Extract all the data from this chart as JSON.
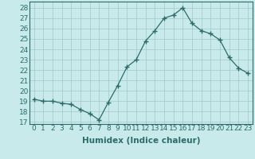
{
  "x": [
    0,
    1,
    2,
    3,
    4,
    5,
    6,
    7,
    8,
    9,
    10,
    11,
    12,
    13,
    14,
    15,
    16,
    17,
    18,
    19,
    20,
    21,
    22,
    23
  ],
  "y": [
    19.2,
    19.0,
    19.0,
    18.8,
    18.7,
    18.2,
    17.8,
    17.2,
    18.9,
    20.5,
    22.3,
    23.0,
    24.8,
    25.8,
    27.0,
    27.3,
    28.0,
    26.5,
    25.8,
    25.5,
    24.9,
    23.2,
    22.2,
    21.7
  ],
  "line_color": "#2d6b6b",
  "marker": "+",
  "marker_size": 4,
  "bg_color": "#c8eaea",
  "grid_color": "#a0c8c8",
  "xlabel": "Humidex (Indice chaleur)",
  "ylabel_ticks": [
    17,
    18,
    19,
    20,
    21,
    22,
    23,
    24,
    25,
    26,
    27,
    28
  ],
  "ylim": [
    16.8,
    28.6
  ],
  "xlim": [
    -0.5,
    23.5
  ],
  "xlabel_fontsize": 7.5,
  "tick_fontsize": 6.5
}
